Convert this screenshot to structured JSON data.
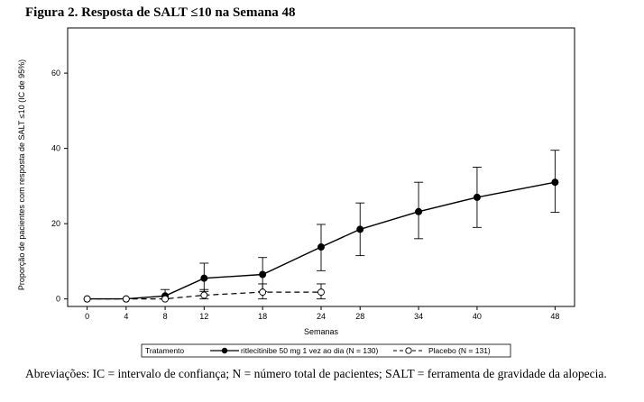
{
  "figure_title": "Figura 2. Resposta de SALT ≤10 na Semana 48",
  "footnote": "Abreviações: IC = intervalo de confiança; N = número total de pacientes; SALT = ferramenta de gravidade da alopecia.",
  "chart_data": {
    "type": "line",
    "xlabel": "Semanas",
    "ylabel": "Proporção de pacientes com resposta de SALT ≤10 (IC de 95%)",
    "xlim": [
      -2,
      50
    ],
    "ylim": [
      -2,
      72
    ],
    "x_ticks": [
      0,
      4,
      8,
      12,
      18,
      24,
      28,
      34,
      40,
      48
    ],
    "y_ticks": [
      0,
      20,
      40,
      60
    ],
    "grid": false,
    "legend_position": "bottom",
    "legend_title": "Tratamento",
    "series": [
      {
        "name": "ritlecitinibe 50 mg 1 vez ao dia (N = 130)",
        "style": "solid",
        "marker": "filled-circle",
        "color": "#000000",
        "points": [
          {
            "x": 0,
            "y": 0,
            "lo": 0,
            "hi": 0
          },
          {
            "x": 4,
            "y": 0,
            "lo": 0,
            "hi": 0
          },
          {
            "x": 8,
            "y": 0.8,
            "lo": 0,
            "hi": 2.5
          },
          {
            "x": 12,
            "y": 5.5,
            "lo": 2,
            "hi": 9.5
          },
          {
            "x": 18,
            "y": 6.5,
            "lo": 2,
            "hi": 11
          },
          {
            "x": 24,
            "y": 13.8,
            "lo": 7.5,
            "hi": 19.8
          },
          {
            "x": 28,
            "y": 18.5,
            "lo": 11.5,
            "hi": 25.5
          },
          {
            "x": 34,
            "y": 23.2,
            "lo": 16,
            "hi": 31
          },
          {
            "x": 40,
            "y": 27,
            "lo": 19,
            "hi": 35
          },
          {
            "x": 48,
            "y": 31,
            "lo": 23,
            "hi": 39.5
          }
        ]
      },
      {
        "name": "Placebo (N = 131)",
        "style": "dashed",
        "marker": "open-circle",
        "color": "#000000",
        "points": [
          {
            "x": 0,
            "y": 0,
            "lo": 0,
            "hi": 0
          },
          {
            "x": 4,
            "y": 0,
            "lo": 0,
            "hi": 0
          },
          {
            "x": 8,
            "y": 0,
            "lo": 0,
            "hi": 0
          },
          {
            "x": 12,
            "y": 1,
            "lo": 0,
            "hi": 2.5
          },
          {
            "x": 18,
            "y": 1.8,
            "lo": 0,
            "hi": 4
          },
          {
            "x": 24,
            "y": 1.8,
            "lo": 0,
            "hi": 4
          }
        ]
      }
    ]
  }
}
